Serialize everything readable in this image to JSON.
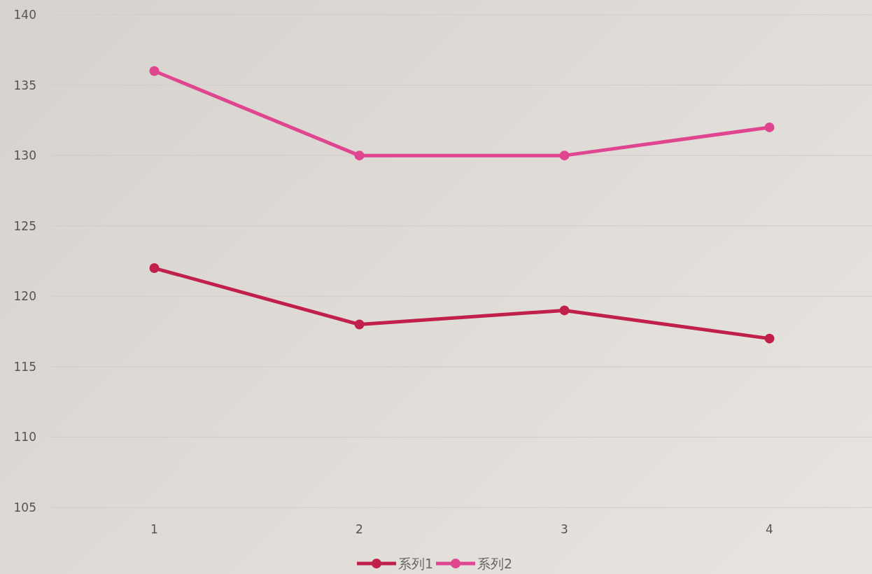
{
  "chart_data": {
    "type": "line",
    "categories": [
      "1",
      "2",
      "3",
      "4"
    ],
    "series": [
      {
        "name": "系列1",
        "color": "#c0204a",
        "values": [
          122,
          118,
          119,
          117
        ]
      },
      {
        "name": "系列2",
        "color": "#e0468f",
        "values": [
          136,
          130,
          130,
          132
        ]
      }
    ],
    "ylim": [
      105,
      140
    ],
    "yticks": [
      105,
      110,
      115,
      120,
      125,
      130,
      135,
      140
    ],
    "grid": "y",
    "legend": "bottom",
    "marker": "circle",
    "line_style": "solid"
  }
}
